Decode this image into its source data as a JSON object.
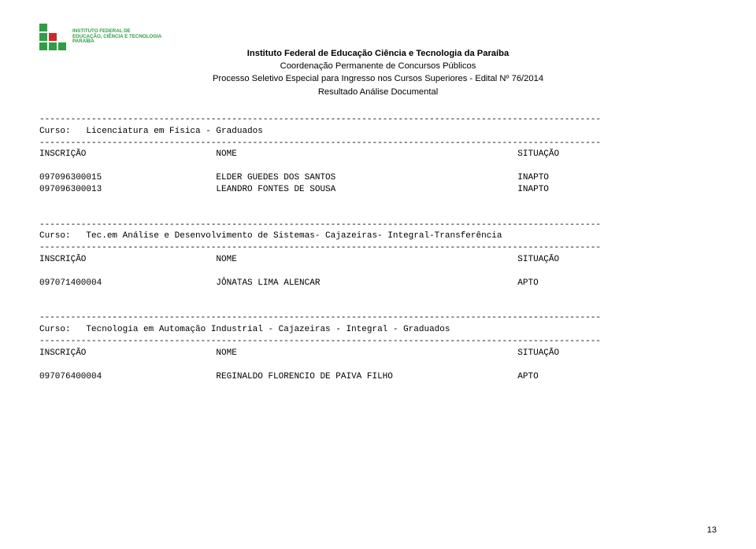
{
  "logo": {
    "line1": "INSTITUTO FEDERAL DE",
    "line2": "EDUCAÇÃO, CIÊNCIA E TECNOLOGIA",
    "line3": "PARAÍBA",
    "square_green": "#2f9e44",
    "square_red": "#c92a2a"
  },
  "header": {
    "l1": "Instituto Federal de Educação Ciência e Tecnologia da Paraíba",
    "l2": "Coordenação Permanente de Concursos Públicos",
    "l3": "Processo Seletivo Especial para Ingresso nos Cursos Superiores -  Edital Nº 76/2014",
    "l4": "Resultado Análise Documental"
  },
  "sections": [
    {
      "curso_label": "Curso:",
      "curso_value": "Licenciatura em Física - Graduados",
      "col_inscricao": "INSCRIÇÃO",
      "col_nome": "NOME",
      "col_situacao": "SITUAÇÃO",
      "rows": [
        {
          "inscricao": "097096300015",
          "nome": "ELDER GUEDES DOS SANTOS",
          "situacao": "INAPTO"
        },
        {
          "inscricao": "097096300013",
          "nome": "LEANDRO FONTES DE SOUSA",
          "situacao": "INAPTO"
        }
      ]
    },
    {
      "curso_label": "Curso:",
      "curso_value": "Tec.em Análise e Desenvolvimento de Sistemas- Cajazeiras- Integral-Transferência",
      "col_inscricao": "INSCRIÇÃO",
      "col_nome": "NOME",
      "col_situacao": "SITUAÇÃO",
      "rows": [
        {
          "inscricao": "097071400004",
          "nome": "JÔNATAS LIMA ALENCAR",
          "situacao": "APTO"
        }
      ]
    },
    {
      "curso_label": "Curso:",
      "curso_value": "Tecnologia em Automação Industrial - Cajazeiras - Integral - Graduados",
      "col_inscricao": "INSCRIÇÃO",
      "col_nome": "NOME",
      "col_situacao": "SITUAÇÃO",
      "rows": [
        {
          "inscricao": "097076400004",
          "nome": "REGINALDO FLORENCIO DE PAIVA FILHO",
          "situacao": "APTO"
        }
      ]
    }
  ],
  "layout": {
    "dash_count": 108,
    "col1_width": 34,
    "col2_width": 58,
    "page_number": "13"
  }
}
